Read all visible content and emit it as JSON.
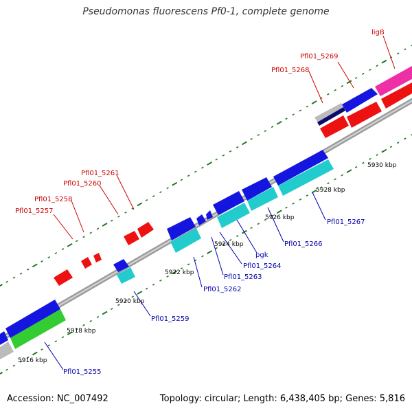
{
  "title": "Pseudomonas fluorescens Pf0-1, complete genome",
  "footer": {
    "accession": "Accession: NC_007492",
    "summary": "Topology: circular; Length: 6,438,405 bp; Genes: 5,816"
  },
  "colors": {
    "backbone_outer": "#9a9a9a",
    "backbone_inner": "#cfcfcf",
    "tick": "#1f7a1f",
    "label_red": "#cc0000",
    "label_blue": "#0000aa",
    "scale_label": "#000000",
    "gene_red": "#ee1111",
    "gene_blue": "#1515e0",
    "gene_cyan": "#22cccc",
    "gene_pink": "#ee2fa6",
    "gene_grey": "#bbbbbb",
    "gene_navy": "#0a0a70",
    "gene_green": "#33cc33"
  },
  "scale_labels": [
    "5916 kbp",
    "5918 kbp",
    "5920 kbp",
    "5922 kbp",
    "5924 kbp",
    "5926 kbp",
    "5928 kbp",
    "5930 kbp"
  ],
  "gene_labels": {
    "ligB": "ligB",
    "Pfl01_5269": "Pfl01_5269",
    "Pfl01_5268": "Pfl01_5268",
    "Pfl01_5261": "Pfl01_5261",
    "Pfl01_5260": "Pfl01_5260",
    "Pfl01_5258": "Pfl01_5258",
    "Pfl01_5257": "Pfl01_5257",
    "Pfl01_5267": "Pfl01_5267",
    "Pfl01_5266": "Pfl01_5266",
    "pgk": "pgk",
    "Pfl01_5264": "Pfl01_5264",
    "Pfl01_5263": "Pfl01_5263",
    "Pfl01_5262": "Pfl01_5262",
    "Pfl01_5259": "Pfl01_5259",
    "Pfl01_5255": "Pfl01_5255"
  }
}
